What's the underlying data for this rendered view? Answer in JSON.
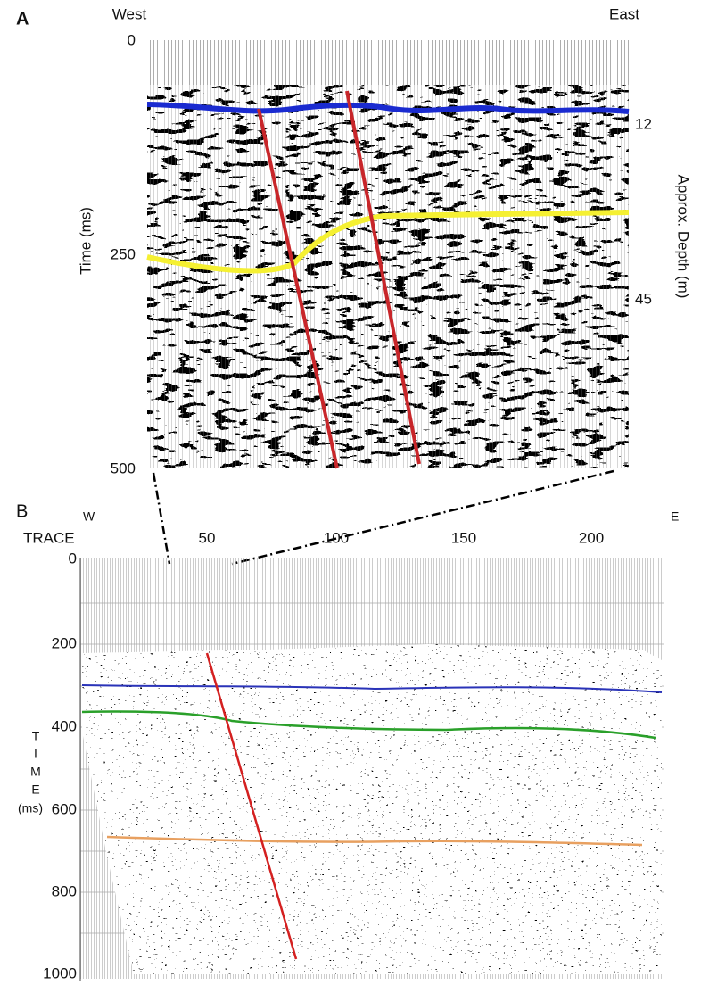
{
  "panel_a": {
    "label": "A",
    "left": "West",
    "right": "East",
    "time_ticks": [
      "0",
      "250",
      "500"
    ],
    "time_label": "Time (ms)",
    "depth_ticks": [
      "12",
      "45"
    ],
    "depth_label": "Approx. Depth (m)"
  },
  "panel_b": {
    "label": "B",
    "left": "W",
    "right": "E",
    "trace_label": "TRACE",
    "trace_ticks": [
      "50",
      "100",
      "150",
      "200"
    ],
    "time_ticks": [
      "0",
      "200",
      "400",
      "600",
      "800",
      "1000"
    ],
    "time_label": [
      "T",
      "I",
      "M",
      "E",
      "(ms)"
    ]
  }
}
